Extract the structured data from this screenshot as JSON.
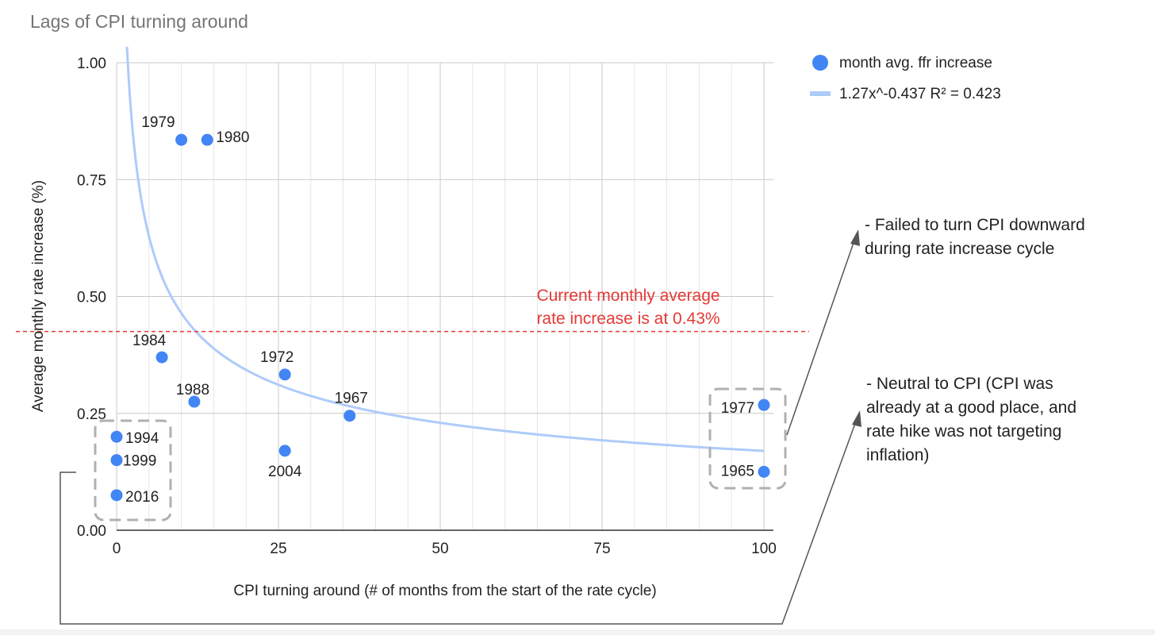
{
  "chart_data": {
    "type": "scatter",
    "title": "Lags of CPI turning around",
    "xlabel": "CPI turning around (# of months from the start of the rate cycle)",
    "ylabel": "Average monthly rate increase (%)",
    "xlim": [
      0,
      100
    ],
    "ylim": [
      0,
      1
    ],
    "x_ticks": [
      "0",
      "25",
      "50",
      "75",
      "100"
    ],
    "y_ticks": [
      "0.00",
      "0.25",
      "0.50",
      "0.75",
      "1.00"
    ],
    "grid": true,
    "legend_position": "top-right",
    "series": [
      {
        "name": "month avg. ffr increase",
        "color": "#4285f4",
        "points": [
          {
            "label": "1979",
            "x": 10,
            "y": 0.835
          },
          {
            "label": "1980",
            "x": 14,
            "y": 0.835
          },
          {
            "label": "1984",
            "x": 7,
            "y": 0.37
          },
          {
            "label": "1988",
            "x": 12,
            "y": 0.275
          },
          {
            "label": "1972",
            "x": 26,
            "y": 0.333
          },
          {
            "label": "2004",
            "x": 26,
            "y": 0.17
          },
          {
            "label": "1967",
            "x": 36,
            "y": 0.245
          },
          {
            "label": "1994",
            "x": 0,
            "y": 0.2
          },
          {
            "label": "1999",
            "x": 0,
            "y": 0.15
          },
          {
            "label": "2016",
            "x": 0,
            "y": 0.075
          },
          {
            "label": "1977",
            "x": 100,
            "y": 0.268
          },
          {
            "label": "1965",
            "x": 100,
            "y": 0.125
          }
        ]
      }
    ],
    "trendline": {
      "name": "1.27x^-0.437 R² = 0.423",
      "coefficient": 1.27,
      "exponent": -0.437,
      "color": "#aecbfa"
    },
    "reference_line": {
      "y": 0.425,
      "color": "#e53935",
      "label_line1": "Current monthly average",
      "label_line2": "rate increase is at 0.43%"
    }
  },
  "annotations": {
    "failed_line1": "- Failed to turn CPI downward",
    "failed_line2": "during rate increase cycle",
    "neutral_line1": "- Neutral to CPI (CPI was",
    "neutral_line2": "already at a good place, and",
    "neutral_line3": "rate hike was not targeting",
    "neutral_line4": "inflation)"
  }
}
